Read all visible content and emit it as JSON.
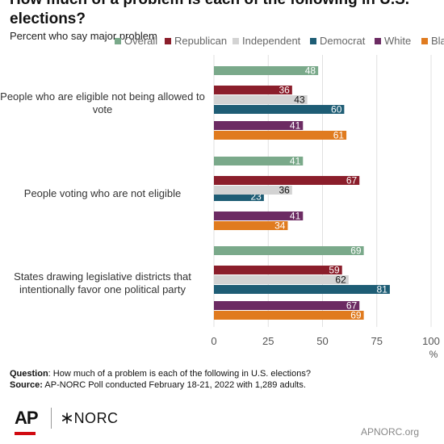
{
  "title": "How much of a problem is each of the following in U.S. elections?",
  "subtitle": "Percent who say major problem",
  "footer": {
    "question_label": "Question",
    "question_text": ": How much of a problem is each of the following in U.S. elections?",
    "source_label": "Source:",
    "source_text": " AP-NORC Poll conducted February 18-21, 2022 with 1,289 adults."
  },
  "logos": {
    "ap": "AP",
    "norc": "NORC",
    "norc_icon": "asterisk-icon"
  },
  "site": "APNORC.org",
  "chart_data": {
    "type": "bar",
    "orientation": "horizontal",
    "categories": [
      "People who are eligible not being allowed to vote",
      "People voting who are not eligible",
      "States drawing legislative districts that intentionally favor one political party"
    ],
    "category_lines": [
      [
        "People who are eligible not being allowed to",
        "vote"
      ],
      [
        "People voting who are not eligible"
      ],
      [
        "States drawing legislative districts that",
        "intentionally favor one political party"
      ]
    ],
    "series": [
      {
        "name": "Overall",
        "color": "#7aa98a",
        "values": [
          48,
          41,
          69
        ]
      },
      {
        "name": "Republican",
        "color": "#8b1e2b",
        "values": [
          36,
          67,
          59
        ]
      },
      {
        "name": "Independent",
        "color": "#d3d3d3",
        "values": [
          43,
          36,
          62
        ]
      },
      {
        "name": "Democrat",
        "color": "#1e5d75",
        "values": [
          60,
          23,
          81
        ]
      },
      {
        "name": "White",
        "color": "#6c2b63",
        "values": [
          41,
          41,
          67
        ]
      },
      {
        "name": "Black",
        "color": "#e07b1f",
        "values": [
          61,
          34,
          69
        ]
      }
    ],
    "missing_bars": [
      {
        "category": 1,
        "series": "Independent"
      }
    ],
    "xlim": [
      0,
      100
    ],
    "xticks": [
      0,
      25,
      50,
      75,
      100
    ],
    "xunit": "%",
    "grid": true,
    "legend_position": "top"
  }
}
